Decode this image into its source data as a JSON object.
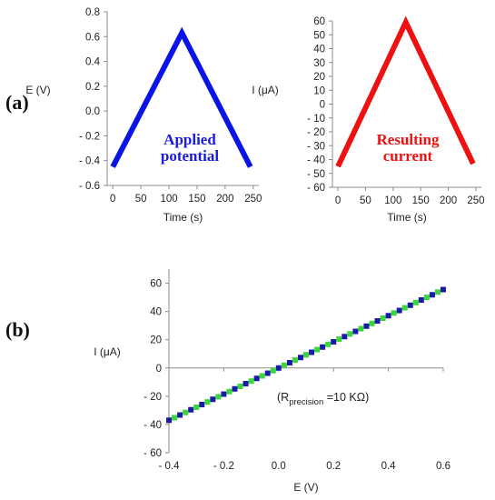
{
  "panel_labels": [
    "(a)",
    "(b)"
  ],
  "annotations": {
    "applied": [
      "Applied",
      "potential"
    ],
    "resulting": [
      "Resulting",
      "current"
    ],
    "rprecision": {
      "prefix": "(R",
      "sub": "precision",
      "suffix": " =10 KΩ)"
    }
  },
  "colors": {
    "potential": "#0a14e6",
    "current": "#ee1111",
    "iv_blue": "#1a1aa8",
    "iv_green": "#3bd63b",
    "axis": "#8c8c8c",
    "applied_text": "#1a1ae0",
    "resulting_text": "#ee1111"
  },
  "chart_data": [
    {
      "id": "a-left",
      "type": "line",
      "title": "",
      "xlabel": "Time (s)",
      "ylabel": "E (V)",
      "xlim": [
        -10,
        260
      ],
      "ylim": [
        -0.6,
        0.8
      ],
      "xticks": [
        0,
        50,
        100,
        150,
        200,
        250
      ],
      "xtick_labels": [
        "0",
        "50",
        "100",
        "150",
        "200",
        "250"
      ],
      "yticks": [
        -0.6,
        -0.4,
        -0.2,
        0.0,
        0.2,
        0.4,
        0.6,
        0.8
      ],
      "ytick_labels": [
        "- 0.6",
        "- 0.4",
        "- 0.2",
        "0.0",
        "0.2",
        "0.4",
        "0.6",
        "0.8"
      ],
      "series": [
        {
          "color": "#0a14e6",
          "x": [
            0,
            123,
            245
          ],
          "y": [
            -0.45,
            0.63,
            -0.45
          ]
        }
      ]
    },
    {
      "id": "a-right",
      "type": "line",
      "title": "",
      "xlabel": "Time (s)",
      "ylabel": "I (μA)",
      "xlim": [
        -10,
        260
      ],
      "ylim": [
        -60,
        60
      ],
      "xticks": [
        0,
        50,
        100,
        150,
        200,
        250
      ],
      "xtick_labels": [
        "0",
        "50",
        "100",
        "150",
        "200",
        "250"
      ],
      "yticks": [
        -60,
        -50,
        -40,
        -30,
        -20,
        -10,
        0,
        10,
        20,
        30,
        40,
        50,
        60
      ],
      "ytick_labels": [
        "- 60",
        "- 50",
        "- 40",
        "- 30",
        "- 20",
        "- 10",
        "0",
        "10",
        "20",
        "30",
        "40",
        "50",
        "60"
      ],
      "series": [
        {
          "color": "#ee1111",
          "x": [
            0,
            123,
            245
          ],
          "y": [
            -45,
            59,
            -43
          ]
        }
      ]
    },
    {
      "id": "b",
      "type": "scatter",
      "title": "",
      "xlabel": "E (V)",
      "ylabel": "I (μA)",
      "xlim": [
        -0.4,
        0.6
      ],
      "ylim": [
        -60,
        70
      ],
      "xticks": [
        -0.4,
        -0.2,
        0.0,
        0.2,
        0.4,
        0.6
      ],
      "xtick_labels": [
        "- 0.4",
        "- 0.2",
        "0.0",
        "0.2",
        "0.4",
        "0.6"
      ],
      "yticks": [
        -60,
        -40,
        -20,
        0,
        20,
        40,
        60
      ],
      "ytick_labels": [
        "- 60",
        "- 40",
        "- 20",
        "0",
        "20",
        "40",
        "60"
      ],
      "series": [
        {
          "color": "#1a1aa8",
          "x": [
            -0.4,
            -0.36,
            -0.32,
            -0.28,
            -0.24,
            -0.2,
            -0.16,
            -0.12,
            -0.08,
            -0.04,
            0.0,
            0.04,
            0.08,
            0.12,
            0.16,
            0.2,
            0.24,
            0.28,
            0.32,
            0.36,
            0.4,
            0.44,
            0.48,
            0.52,
            0.56,
            0.6
          ],
          "y": [
            -37,
            -33.3,
            -29.6,
            -25.9,
            -22.2,
            -18.5,
            -14.8,
            -11.1,
            -7.4,
            -3.7,
            0,
            3.7,
            7.4,
            11.1,
            14.8,
            18.5,
            22.2,
            25.9,
            29.6,
            33.3,
            37,
            40.7,
            44.4,
            48.1,
            51.8,
            55.5
          ]
        },
        {
          "color": "#3bd63b",
          "x": [
            -0.38,
            -0.34,
            -0.3,
            -0.26,
            -0.22,
            -0.18,
            -0.14,
            -0.1,
            -0.06,
            -0.02,
            0.02,
            0.06,
            0.1,
            0.14,
            0.18,
            0.22,
            0.26,
            0.3,
            0.34,
            0.38,
            0.42,
            0.46,
            0.5,
            0.54,
            0.58
          ],
          "y": [
            -35.2,
            -31.5,
            -27.8,
            -24.1,
            -20.4,
            -16.7,
            -13.0,
            -9.3,
            -5.6,
            -1.9,
            1.9,
            5.6,
            9.3,
            13.0,
            16.7,
            20.4,
            24.1,
            27.8,
            31.5,
            35.2,
            38.9,
            42.6,
            46.3,
            50.0,
            53.7
          ]
        }
      ]
    }
  ]
}
